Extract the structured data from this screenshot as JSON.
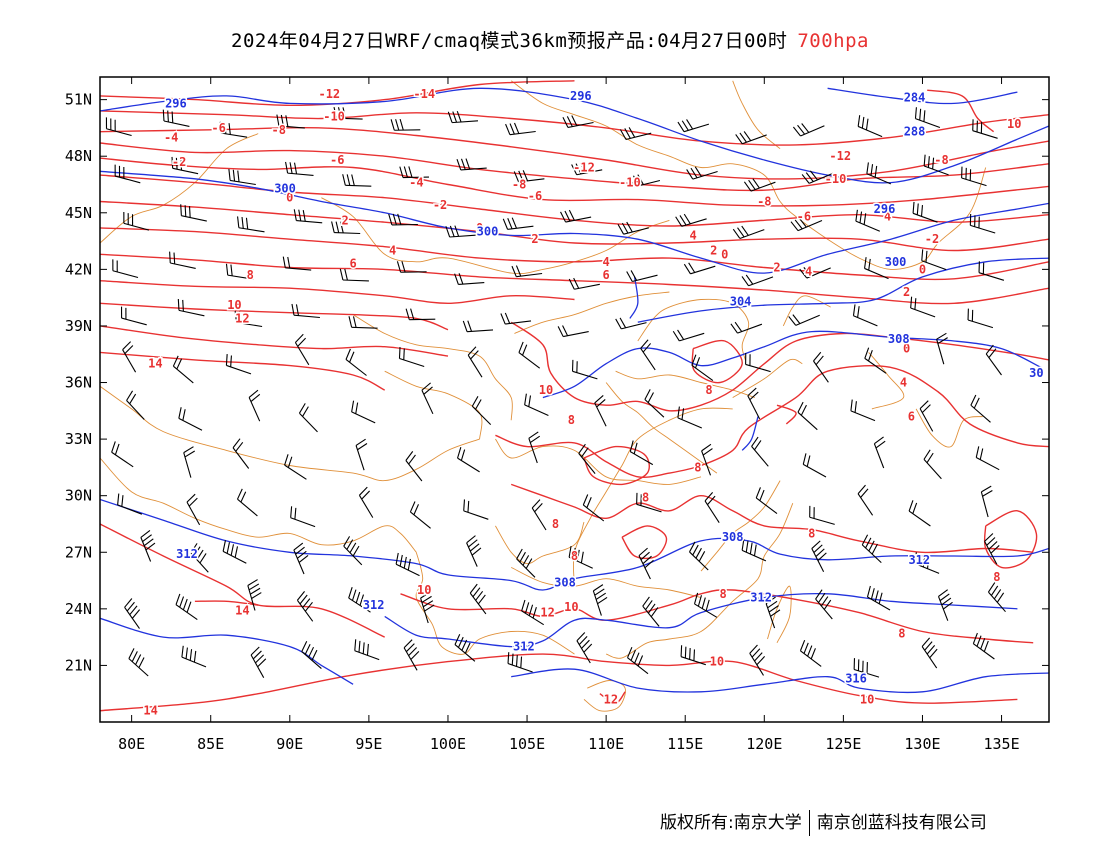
{
  "title": {
    "main": "2024年04月27日WRF/cmaq模式36km预报产品:04月27日00时",
    "level": "700hpa"
  },
  "axes": {
    "lon_labels": [
      "80E",
      "85E",
      "90E",
      "95E",
      "100E",
      "105E",
      "110E",
      "115E",
      "120E",
      "125E",
      "130E",
      "135E"
    ],
    "lon_values": [
      80,
      85,
      90,
      95,
      100,
      105,
      110,
      115,
      120,
      125,
      130,
      135
    ],
    "lat_labels": [
      "51N",
      "48N",
      "45N",
      "42N",
      "39N",
      "36N",
      "33N",
      "30N",
      "27N",
      "24N",
      "21N"
    ],
    "lat_values": [
      51,
      48,
      45,
      42,
      39,
      36,
      33,
      30,
      27,
      24,
      21
    ],
    "lon_range": [
      78,
      138
    ],
    "lat_range": [
      18,
      52.2
    ]
  },
  "colors": {
    "temperature": "#e83232",
    "height": "#2233dd",
    "boundary": "#e0903a",
    "wind": "#000000"
  },
  "temperature_labels": [
    {
      "t": "-12",
      "lon": 92.5,
      "lat": 51.3
    },
    {
      "t": "-14",
      "lon": 98.5,
      "lat": 51.3
    },
    {
      "t": "-10",
      "lon": 92.8,
      "lat": 50.1
    },
    {
      "t": "-6",
      "lon": 85.5,
      "lat": 49.5
    },
    {
      "t": "-8",
      "lon": 89.3,
      "lat": 49.4
    },
    {
      "t": "-4",
      "lon": 82.5,
      "lat": 49.0
    },
    {
      "t": "-2",
      "lon": 83.0,
      "lat": 47.7
    },
    {
      "t": "-6",
      "lon": 93.0,
      "lat": 47.8
    },
    {
      "t": "-4",
      "lon": 98.0,
      "lat": 46.6
    },
    {
      "t": "-8",
      "lon": 104.5,
      "lat": 46.5
    },
    {
      "t": "-6",
      "lon": 105.5,
      "lat": 45.9
    },
    {
      "t": "-12",
      "lon": 108.6,
      "lat": 47.4
    },
    {
      "t": "-10",
      "lon": 111.5,
      "lat": 46.6
    },
    {
      "t": "-2",
      "lon": 99.5,
      "lat": 45.4
    },
    {
      "t": "0",
      "lon": 90.0,
      "lat": 45.8
    },
    {
      "t": "2",
      "lon": 93.5,
      "lat": 44.6
    },
    {
      "t": "0",
      "lon": 102.0,
      "lat": 44.2
    },
    {
      "t": "2",
      "lon": 105.5,
      "lat": 43.6
    },
    {
      "t": "4",
      "lon": 96.5,
      "lat": 43.0
    },
    {
      "t": "6",
      "lon": 94.0,
      "lat": 42.3
    },
    {
      "t": "4",
      "lon": 110.0,
      "lat": 42.4
    },
    {
      "t": "6",
      "lon": 110.0,
      "lat": 41.7
    },
    {
      "t": "8",
      "lon": 87.5,
      "lat": 41.7
    },
    {
      "t": "10",
      "lon": 86.5,
      "lat": 40.1
    },
    {
      "t": "12",
      "lon": 87.0,
      "lat": 39.4
    },
    {
      "t": "14",
      "lon": 81.5,
      "lat": 37.0
    },
    {
      "t": "10",
      "lon": 106.2,
      "lat": 35.6
    },
    {
      "t": "8",
      "lon": 107.8,
      "lat": 34.0
    },
    {
      "t": "4",
      "lon": 115.5,
      "lat": 43.8
    },
    {
      "t": "2",
      "lon": 116.8,
      "lat": 43.0
    },
    {
      "t": "0",
      "lon": 117.5,
      "lat": 42.8
    },
    {
      "t": "2",
      "lon": 120.8,
      "lat": 42.1
    },
    {
      "t": "4",
      "lon": 122.8,
      "lat": 41.9
    },
    {
      "t": "-8",
      "lon": 120.0,
      "lat": 45.6
    },
    {
      "t": "-6",
      "lon": 122.5,
      "lat": 44.8
    },
    {
      "t": "-12",
      "lon": 124.8,
      "lat": 48.0
    },
    {
      "t": "-10",
      "lon": 124.5,
      "lat": 46.8
    },
    {
      "t": "-8",
      "lon": 131.2,
      "lat": 47.8
    },
    {
      "t": "4",
      "lon": 127.8,
      "lat": 44.8
    },
    {
      "t": "-2",
      "lon": 130.6,
      "lat": 43.6
    },
    {
      "t": "0",
      "lon": 130.0,
      "lat": 42.0
    },
    {
      "t": "2",
      "lon": 129.0,
      "lat": 40.8
    },
    {
      "t": "10",
      "lon": 135.8,
      "lat": 49.7
    },
    {
      "t": "0",
      "lon": 129.0,
      "lat": 37.8
    },
    {
      "t": "4",
      "lon": 128.8,
      "lat": 36.0
    },
    {
      "t": "6",
      "lon": 129.3,
      "lat": 34.2
    },
    {
      "t": "8",
      "lon": 116.5,
      "lat": 35.6
    },
    {
      "t": "8",
      "lon": 115.8,
      "lat": 31.5
    },
    {
      "t": "8",
      "lon": 112.5,
      "lat": 29.9
    },
    {
      "t": "8",
      "lon": 106.8,
      "lat": 28.5
    },
    {
      "t": "8",
      "lon": 108.0,
      "lat": 26.8
    },
    {
      "t": "8",
      "lon": 123.0,
      "lat": 28.0
    },
    {
      "t": "8",
      "lon": 134.7,
      "lat": 25.7
    },
    {
      "t": "8",
      "lon": 117.4,
      "lat": 24.8
    },
    {
      "t": "8",
      "lon": 128.7,
      "lat": 22.7
    },
    {
      "t": "10",
      "lon": 98.5,
      "lat": 25.0
    },
    {
      "t": "10",
      "lon": 107.8,
      "lat": 24.1
    },
    {
      "t": "12",
      "lon": 106.3,
      "lat": 23.8
    },
    {
      "t": "14",
      "lon": 87.0,
      "lat": 23.9
    },
    {
      "t": "14",
      "lon": 81.2,
      "lat": 18.6
    },
    {
      "t": "10",
      "lon": 117.0,
      "lat": 21.2
    },
    {
      "t": "12",
      "lon": 110.3,
      "lat": 19.2
    },
    {
      "t": "10",
      "lon": 126.5,
      "lat": 19.2
    }
  ],
  "height_labels": [
    {
      "t": "296",
      "lon": 82.8,
      "lat": 50.8
    },
    {
      "t": "296",
      "lon": 108.4,
      "lat": 51.2
    },
    {
      "t": "300",
      "lon": 89.7,
      "lat": 46.3
    },
    {
      "t": "300",
      "lon": 102.5,
      "lat": 44.0
    },
    {
      "t": "284",
      "lon": 129.5,
      "lat": 51.1
    },
    {
      "t": "288",
      "lon": 129.5,
      "lat": 49.3
    },
    {
      "t": "296",
      "lon": 127.6,
      "lat": 45.2
    },
    {
      "t": "300",
      "lon": 128.3,
      "lat": 42.4
    },
    {
      "t": "304",
      "lon": 118.5,
      "lat": 40.3
    },
    {
      "t": "308",
      "lon": 128.5,
      "lat": 38.3
    },
    {
      "t": "30",
      "lon": 137.2,
      "lat": 36.5
    },
    {
      "t": "308",
      "lon": 118.0,
      "lat": 27.8
    },
    {
      "t": "308",
      "lon": 107.4,
      "lat": 25.4
    },
    {
      "t": "312",
      "lon": 83.5,
      "lat": 26.9
    },
    {
      "t": "312",
      "lon": 95.3,
      "lat": 24.2
    },
    {
      "t": "312",
      "lon": 104.8,
      "lat": 22.0
    },
    {
      "t": "312",
      "lon": 129.8,
      "lat": 26.6
    },
    {
      "t": "312",
      "lon": 119.8,
      "lat": 24.6
    },
    {
      "t": "316",
      "lon": 125.8,
      "lat": 20.3
    }
  ],
  "footer": {
    "copyright": "版权所有:南京大学",
    "company": "南京创蓝科技有限公司"
  }
}
